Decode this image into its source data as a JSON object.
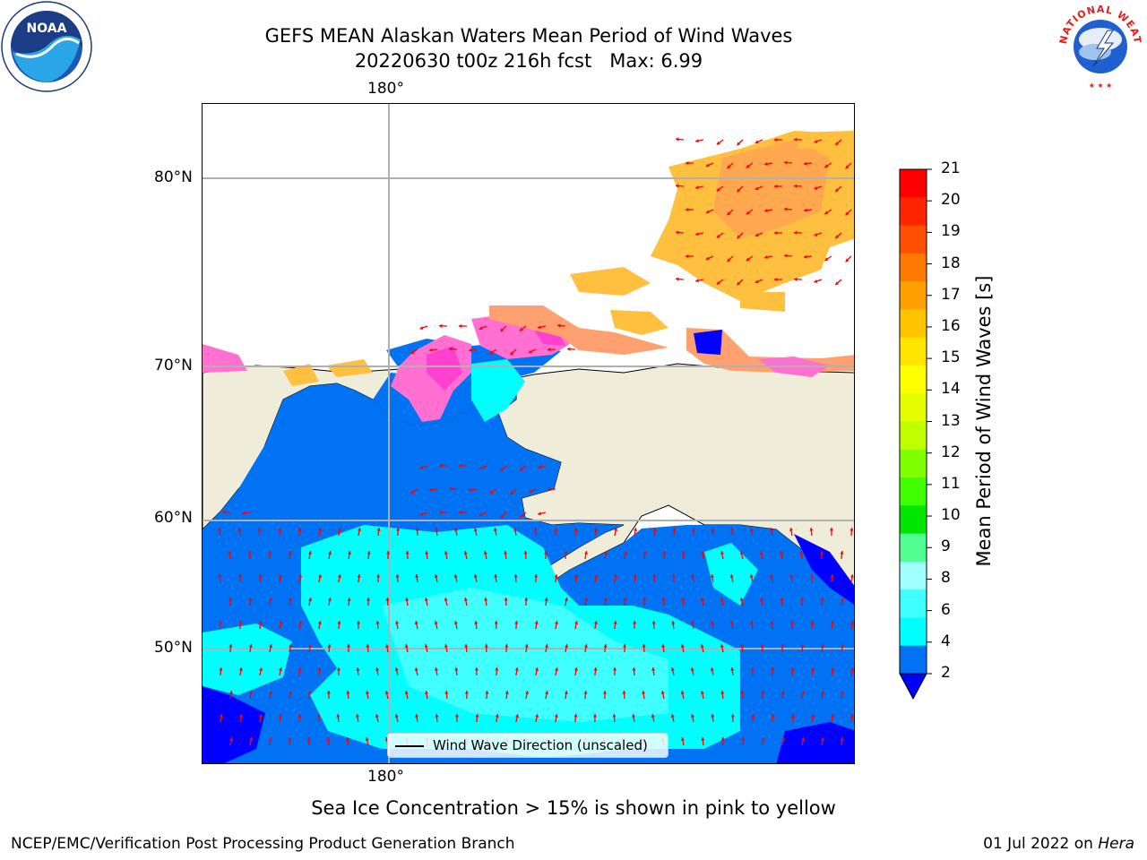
{
  "title": {
    "line1": "GEFS MEAN Alaskan Waters Mean Period of Wind Waves",
    "line2": "20220630 t00z 216h fcst   Max: 6.99"
  },
  "logos": {
    "noaa": {
      "text": "NOAA",
      "ring_text": "NATIONAL OCEANIC AND ATMOSPHERIC ADMINISTRATION · U.S. DEPARTMENT OF COMMERCE"
    },
    "nws": {
      "ring_text": "NATIONAL WEATHER SERVICE"
    }
  },
  "map": {
    "lon_labels": {
      "top": "180°",
      "bottom": "180°"
    },
    "lat_labels": [
      "80°N",
      "70°N",
      "60°N",
      "50°N"
    ],
    "legend": "Wind Wave Direction (unscaled)",
    "colors": {
      "land": "#efedda",
      "deep_blue": "#0000ff",
      "blue": "#0073f5",
      "cyan": "#00ffff",
      "light_cyan": "#40ffff",
      "ice_pink": "#ff40d0",
      "ice_yellow": "#ffc040",
      "arrow": "#ff0000"
    }
  },
  "colorbar": {
    "label": "Mean Period of Wind Waves [s]",
    "ticks": [
      "21",
      "20",
      "19",
      "18",
      "17",
      "16",
      "15",
      "14",
      "13",
      "12",
      "11",
      "10",
      "9",
      "8",
      "6",
      "4",
      "2"
    ],
    "colors": [
      "#ff0000",
      "#ff2500",
      "#ff4f00",
      "#ff7800",
      "#ffa000",
      "#ffc400",
      "#ffe500",
      "#ffff00",
      "#e5ff00",
      "#c0ff00",
      "#80ff00",
      "#40ff00",
      "#00e600",
      "#50ff90",
      "#a0ffff",
      "#40ffff",
      "#00ffff",
      "#0073f5"
    ],
    "under_color": "#0000ff"
  },
  "caption": "Sea Ice Concentration > 15% is shown in pink to yellow",
  "footer": {
    "left": "NCEP/EMC/Verification Post Processing Product Generation Branch",
    "right_date": "01 Jul 2022 on ",
    "right_machine": "Hera"
  }
}
